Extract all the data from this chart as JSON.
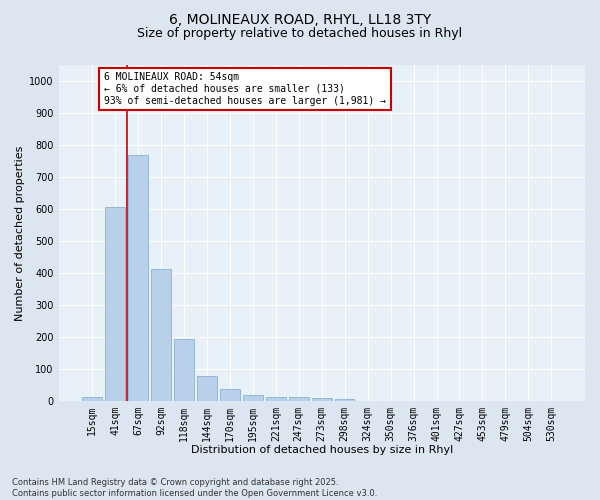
{
  "title_line1": "6, MOLINEAUX ROAD, RHYL, LL18 3TY",
  "title_line2": "Size of property relative to detached houses in Rhyl",
  "xlabel": "Distribution of detached houses by size in Rhyl",
  "ylabel": "Number of detached properties",
  "categories": [
    "15sqm",
    "41sqm",
    "67sqm",
    "92sqm",
    "118sqm",
    "144sqm",
    "170sqm",
    "195sqm",
    "221sqm",
    "247sqm",
    "273sqm",
    "298sqm",
    "324sqm",
    "350sqm",
    "376sqm",
    "401sqm",
    "427sqm",
    "453sqm",
    "479sqm",
    "504sqm",
    "530sqm"
  ],
  "values": [
    13,
    605,
    770,
    413,
    193,
    78,
    37,
    19,
    13,
    12,
    8,
    4,
    0,
    0,
    0,
    0,
    0,
    0,
    0,
    0,
    0
  ],
  "bar_color": "#b8d0ea",
  "bar_edge_color": "#7aaad0",
  "vline_x": 1.5,
  "vline_color": "#cc0000",
  "annotation_text": "6 MOLINEAUX ROAD: 54sqm\n← 6% of detached houses are smaller (133)\n93% of semi-detached houses are larger (1,981) →",
  "annotation_box_color": "#cc0000",
  "annotation_text_color": "#000000",
  "annotation_bg": "#ffffff",
  "ylim": [
    0,
    1050
  ],
  "yticks": [
    0,
    100,
    200,
    300,
    400,
    500,
    600,
    700,
    800,
    900,
    1000
  ],
  "background_color": "#dce6f0",
  "plot_bg_color": "#e8f0f8",
  "grid_color": "#ffffff",
  "footnote": "Contains HM Land Registry data © Crown copyright and database right 2025.\nContains public sector information licensed under the Open Government Licence v3.0.",
  "title_fontsize": 10,
  "subtitle_fontsize": 9,
  "axis_label_fontsize": 8,
  "tick_fontsize": 7,
  "annotation_fontsize": 7,
  "footnote_fontsize": 6
}
